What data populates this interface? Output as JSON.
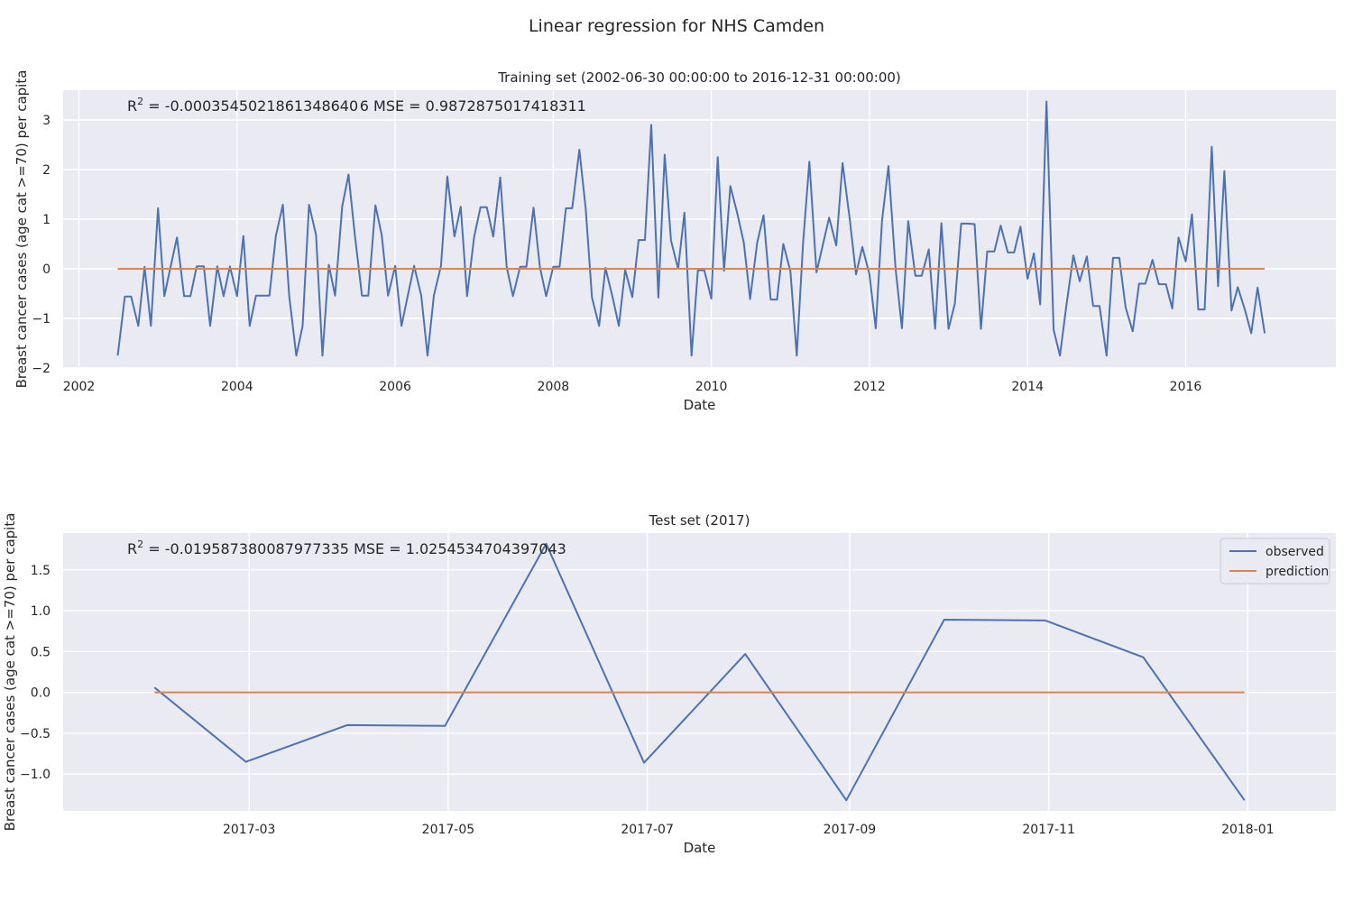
{
  "figure": {
    "suptitle": "Linear regression for NHS Camden"
  },
  "colors": {
    "observed": "#4c72b0",
    "prediction": "#dd8452",
    "panel_bg": "#eaeaf2",
    "grid": "#ffffff"
  },
  "chart_data": [
    {
      "type": "line",
      "title": "Training set (2002-06-30 00:00:00 to 2016-12-31 00:00:00)",
      "annotation": {
        "r2_prefix": "R",
        "r2_sup": "2",
        "text": " = -0.0003545021861348640 6  MSE = 0.9872875017418311"
      },
      "xlabel": "Date",
      "ylabel": "Breast cancer cases (age cat >=70) per capita",
      "x_axis": "decimal-year",
      "xlim": [
        2001.8,
        2017.9
      ],
      "ylim": [
        -2.0,
        3.6
      ],
      "xticks": [
        2002,
        2004,
        2006,
        2008,
        2010,
        2012,
        2014,
        2016
      ],
      "xtick_labels": [
        "2002",
        "2004",
        "2006",
        "2008",
        "2010",
        "2012",
        "2014",
        "2016"
      ],
      "yticks": [
        -2,
        -1,
        0,
        1,
        2,
        3
      ],
      "ytick_labels": [
        "−2",
        "−1",
        "0",
        "1",
        "2",
        "3"
      ],
      "grid": true,
      "series": [
        {
          "key": "observed",
          "x": [
            2002.49,
            2002.58,
            2002.66,
            2002.75,
            2002.83,
            2002.91,
            2003.0,
            2003.08,
            2003.16,
            2003.24,
            2003.33,
            2003.41,
            2003.49,
            2003.58,
            2003.66,
            2003.75,
            2003.83,
            2003.91,
            2004.0,
            2004.08,
            2004.16,
            2004.24,
            2004.33,
            2004.41,
            2004.49,
            2004.58,
            2004.66,
            2004.75,
            2004.83,
            2004.91,
            2005.0,
            2005.08,
            2005.16,
            2005.24,
            2005.33,
            2005.41,
            2005.49,
            2005.58,
            2005.66,
            2005.75,
            2005.83,
            2005.91,
            2006.0,
            2006.08,
            2006.16,
            2006.24,
            2006.33,
            2006.41,
            2006.49,
            2006.58,
            2006.66,
            2006.75,
            2006.83,
            2006.91,
            2007.0,
            2007.08,
            2007.16,
            2007.24,
            2007.33,
            2007.41,
            2007.49,
            2007.58,
            2007.66,
            2007.75,
            2007.83,
            2007.91,
            2008.0,
            2008.08,
            2008.16,
            2008.24,
            2008.33,
            2008.41,
            2008.49,
            2008.58,
            2008.66,
            2008.75,
            2008.83,
            2008.91,
            2009.0,
            2009.08,
            2009.16,
            2009.24,
            2009.33,
            2009.41,
            2009.49,
            2009.58,
            2009.66,
            2009.75,
            2009.83,
            2009.91,
            2010.0,
            2010.08,
            2010.16,
            2010.24,
            2010.33,
            2010.41,
            2010.49,
            2010.58,
            2010.66,
            2010.75,
            2010.83,
            2010.91,
            2011.0,
            2011.08,
            2011.16,
            2011.24,
            2011.33,
            2011.41,
            2011.49,
            2011.58,
            2011.66,
            2011.75,
            2011.83,
            2011.91,
            2012.0,
            2012.08,
            2012.16,
            2012.24,
            2012.33,
            2012.41,
            2012.49,
            2012.58,
            2012.66,
            2012.75,
            2012.83,
            2012.91,
            2013.0,
            2013.08,
            2013.16,
            2013.24,
            2013.33,
            2013.41,
            2013.49,
            2013.58,
            2013.66,
            2013.75,
            2013.83,
            2013.91,
            2014.0,
            2014.08,
            2014.16,
            2014.24,
            2014.33,
            2014.41,
            2014.49,
            2014.58,
            2014.66,
            2014.75,
            2014.83,
            2014.91,
            2015.0,
            2015.08,
            2015.16,
            2015.24,
            2015.33,
            2015.41,
            2015.49,
            2015.58,
            2015.66,
            2015.75,
            2015.83,
            2015.91,
            2016.0,
            2016.08,
            2016.16,
            2016.24,
            2016.33,
            2016.41,
            2016.49,
            2016.58,
            2016.66,
            2016.75,
            2016.83,
            2016.91,
            2017.0
          ],
          "values": [
            -1.75,
            -0.56,
            -0.56,
            -1.15,
            0.04,
            -1.15,
            1.22,
            -0.55,
            0.05,
            0.63,
            -0.55,
            -0.55,
            0.05,
            0.05,
            -1.15,
            0.05,
            -0.55,
            0.05,
            -0.55,
            0.66,
            -1.15,
            -0.54,
            -0.54,
            -0.54,
            0.66,
            1.29,
            -0.54,
            -1.75,
            -1.15,
            1.29,
            0.68,
            -1.75,
            0.08,
            -0.54,
            1.26,
            1.9,
            0.68,
            -0.54,
            -0.54,
            1.28,
            0.68,
            -0.54,
            0.06,
            -1.15,
            -0.54,
            0.06,
            -0.54,
            -1.75,
            -0.54,
            0.06,
            1.86,
            0.65,
            1.25,
            -0.55,
            0.65,
            1.24,
            1.24,
            0.65,
            1.84,
            0.04,
            -0.55,
            0.04,
            0.04,
            1.23,
            0.04,
            -0.55,
            0.04,
            0.04,
            1.22,
            1.22,
            2.4,
            1.22,
            -0.58,
            -1.15,
            0.02,
            -0.57,
            -1.15,
            -0.02,
            -0.57,
            0.58,
            0.58,
            2.9,
            -0.58,
            2.3,
            0.57,
            0.0,
            1.13,
            -1.75,
            -0.03,
            -0.03,
            -0.6,
            2.25,
            -0.04,
            1.67,
            1.1,
            0.53,
            -0.61,
            0.53,
            1.08,
            -0.62,
            -0.62,
            0.5,
            -0.05,
            -1.75,
            0.51,
            2.16,
            -0.07,
            0.48,
            1.03,
            0.47,
            2.13,
            1.01,
            -0.11,
            0.44,
            -0.11,
            -1.2,
            0.98,
            2.07,
            0.02,
            -1.2,
            0.96,
            -0.14,
            -0.14,
            0.39,
            -1.21,
            0.92,
            -1.21,
            -0.7,
            0.91,
            0.91,
            0.9,
            -1.21,
            0.35,
            0.35,
            0.87,
            0.33,
            0.33,
            0.85,
            -0.2,
            0.31,
            -0.72,
            3.37,
            -1.23,
            -1.75,
            -0.76,
            0.27,
            -0.25,
            0.25,
            -0.75,
            -0.75,
            -1.75,
            0.22,
            0.22,
            -0.78,
            -1.26,
            -0.3,
            -0.3,
            0.18,
            -0.31,
            -0.31,
            -0.8,
            0.63,
            0.15,
            1.1,
            -0.82,
            -0.82,
            2.46,
            -0.35,
            1.97,
            -0.84,
            -0.37,
            -0.83,
            -1.3,
            -0.38,
            -1.3
          ]
        },
        {
          "key": "prediction",
          "x": [
            2002.49,
            2017.0
          ],
          "values": [
            0.0,
            0.0
          ]
        }
      ]
    },
    {
      "type": "line",
      "title": "Test set (2017)",
      "annotation": {
        "r2_prefix": "R",
        "r2_sup": "2",
        "text": " = -0.019587380087977335  MSE = 1.0254534704397043"
      },
      "xlabel": "Date",
      "ylabel": "Breast cancer cases (age cat >=70) per capita",
      "x_axis": "date",
      "xlim": [
        "2017-01-03",
        "2018-01-28"
      ],
      "ylim": [
        -1.45,
        1.95
      ],
      "xticks": [
        "2017-03-01",
        "2017-05-01",
        "2017-07-01",
        "2017-09-01",
        "2017-11-01",
        "2018-01-01"
      ],
      "xtick_labels": [
        "2017-03",
        "2017-05",
        "2017-07",
        "2017-09",
        "2017-11",
        "2018-01"
      ],
      "yticks": [
        -1.0,
        -0.5,
        0.0,
        0.5,
        1.0,
        1.5
      ],
      "ytick_labels": [
        "−1.0",
        "−0.5",
        "0.0",
        "0.5",
        "1.0",
        "1.5"
      ],
      "grid": true,
      "legend": {
        "placement": "top-right",
        "entries": [
          {
            "key": "observed",
            "label": "observed"
          },
          {
            "key": "prediction",
            "label": "prediction"
          }
        ]
      },
      "series": [
        {
          "key": "observed",
          "name": "observed",
          "x": [
            "2017-01-31",
            "2017-02-28",
            "2017-03-31",
            "2017-04-30",
            "2017-05-31",
            "2017-06-30",
            "2017-07-31",
            "2017-08-31",
            "2017-09-30",
            "2017-10-31",
            "2017-11-30",
            "2017-12-31"
          ],
          "values": [
            0.06,
            -0.85,
            -0.4,
            -0.41,
            1.82,
            -0.86,
            0.47,
            -1.32,
            0.89,
            0.88,
            0.43,
            -1.32
          ]
        },
        {
          "key": "prediction",
          "name": "prediction",
          "x": [
            "2017-01-31",
            "2017-12-31"
          ],
          "values": [
            0.0,
            0.0
          ]
        }
      ]
    }
  ]
}
